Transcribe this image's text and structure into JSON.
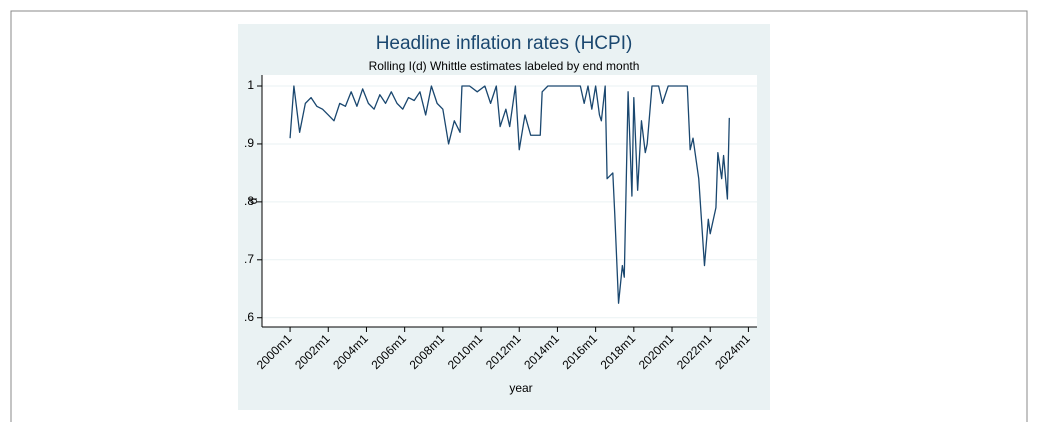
{
  "chart_data": {
    "type": "line",
    "title": "Headline inflation rates (HCPI)",
    "subtitle": "Rolling I(d) Whittle estimates labeled by end month",
    "x_label": "year",
    "y_label": "d",
    "x": [
      2000.0,
      2000.2,
      2000.5,
      2000.8,
      2001.1,
      2001.4,
      2001.7,
      2002.0,
      2002.3,
      2002.6,
      2002.9,
      2003.2,
      2003.5,
      2003.8,
      2004.1,
      2004.4,
      2004.7,
      2005.0,
      2005.3,
      2005.6,
      2005.9,
      2006.2,
      2006.5,
      2006.8,
      2007.1,
      2007.4,
      2007.7,
      2008.0,
      2008.3,
      2008.6,
      2008.9,
      2009.0,
      2009.4,
      2009.8,
      2010.2,
      2010.5,
      2010.8,
      2011.0,
      2011.3,
      2011.5,
      2011.8,
      2012.0,
      2012.3,
      2012.6,
      2013.1,
      2013.2,
      2013.5,
      2014.5,
      2015.2,
      2015.4,
      2015.6,
      2015.8,
      2016.0,
      2016.2,
      2016.3,
      2016.5,
      2016.6,
      2016.9,
      2017.0,
      2017.2,
      2017.4,
      2017.5,
      2017.7,
      2017.9,
      2018.0,
      2018.2,
      2018.4,
      2018.6,
      2018.7,
      2018.95,
      2019.3,
      2019.5,
      2019.8,
      2020.3,
      2020.8,
      2020.95,
      2021.1,
      2021.4,
      2021.7,
      2021.9,
      2022.0,
      2022.3,
      2022.4,
      2022.6,
      2022.7,
      2022.9,
      2023.0
    ],
    "series": [
      {
        "name": "d",
        "color": "#1a476f",
        "values": [
          0.91,
          1.0,
          0.92,
          0.97,
          0.98,
          0.965,
          0.96,
          0.95,
          0.94,
          0.97,
          0.965,
          0.99,
          0.965,
          0.995,
          0.97,
          0.96,
          0.985,
          0.97,
          0.99,
          0.97,
          0.96,
          0.98,
          0.975,
          0.99,
          0.95,
          1.0,
          0.97,
          0.96,
          0.9,
          0.94,
          0.92,
          1.0,
          1.0,
          0.99,
          1.0,
          0.97,
          1.0,
          0.93,
          0.96,
          0.93,
          1.0,
          0.89,
          0.95,
          0.915,
          0.915,
          0.99,
          1.0,
          1.0,
          1.0,
          0.97,
          1.0,
          0.96,
          1.0,
          0.95,
          0.94,
          1.0,
          0.84,
          0.85,
          0.78,
          0.625,
          0.69,
          0.67,
          0.99,
          0.81,
          0.98,
          0.82,
          0.94,
          0.885,
          0.9,
          1.0,
          1.0,
          0.97,
          1.0,
          1.0,
          1.0,
          0.89,
          0.91,
          0.84,
          0.69,
          0.77,
          0.745,
          0.79,
          0.885,
          0.84,
          0.88,
          0.805,
          0.945
        ]
      }
    ],
    "xlim": [
      1998.53,
      2024.45
    ],
    "ylim": [
      0.584,
      1.019
    ],
    "xticks": [
      {
        "value": 2000,
        "label": "2000m1"
      },
      {
        "value": 2002,
        "label": "2002m1"
      },
      {
        "value": 2004,
        "label": "2004m1"
      },
      {
        "value": 2006,
        "label": "2006m1"
      },
      {
        "value": 2008,
        "label": "2008m1"
      },
      {
        "value": 2010,
        "label": "2010m1"
      },
      {
        "value": 2012,
        "label": "2012m1"
      },
      {
        "value": 2014,
        "label": "2014m1"
      },
      {
        "value": 2016,
        "label": "2016m1"
      },
      {
        "value": 2018,
        "label": "2018m1"
      },
      {
        "value": 2020,
        "label": "2020m1"
      },
      {
        "value": 2022,
        "label": "2022m1"
      },
      {
        "value": 2024,
        "label": "2024m1"
      }
    ],
    "yticks": [
      {
        "value": 0.6,
        "label": ".6"
      },
      {
        "value": 0.7,
        "label": ".7"
      },
      {
        "value": 0.8,
        "label": ".8"
      },
      {
        "value": 0.9,
        "label": ".9"
      },
      1
    ],
    "grid": true
  }
}
